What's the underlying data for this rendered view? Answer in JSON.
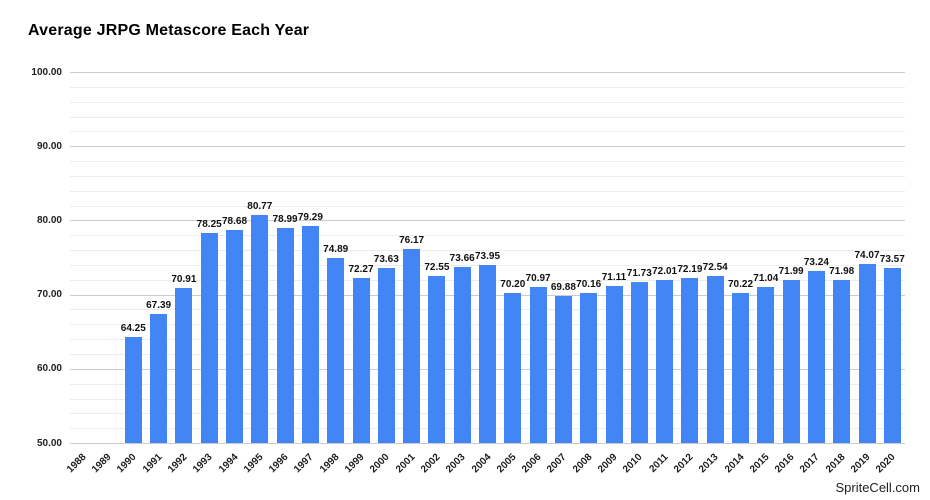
{
  "watermark": "SpriteCell.com",
  "chart_data": {
    "type": "bar",
    "title": "Average JRPG Metascore Each Year",
    "xlabel": "",
    "ylabel": "",
    "categories": [
      "1988",
      "1989",
      "1990",
      "1991",
      "1992",
      "1993",
      "1994",
      "1995",
      "1996",
      "1997",
      "1998",
      "1999",
      "2000",
      "2001",
      "2002",
      "2003",
      "2004",
      "2005",
      "2006",
      "2007",
      "2008",
      "2009",
      "2010",
      "2011",
      "2012",
      "2013",
      "2014",
      "2015",
      "2016",
      "2017",
      "2018",
      "2019",
      "2020"
    ],
    "values": [
      null,
      null,
      64.25,
      67.39,
      70.91,
      78.25,
      78.68,
      80.77,
      78.99,
      79.29,
      74.89,
      72.27,
      73.63,
      76.17,
      72.55,
      73.66,
      73.95,
      70.2,
      70.97,
      69.88,
      70.16,
      71.11,
      71.73,
      72.01,
      72.19,
      72.54,
      70.22,
      71.04,
      71.99,
      73.24,
      71.98,
      74.07,
      73.57
    ],
    "ylim": [
      50,
      100
    ],
    "y_major_tick_step": 10,
    "y_minor_tick_step": 2,
    "y_tick_labels": [
      "50.00",
      "60.00",
      "70.00",
      "80.00",
      "90.00",
      "100.00"
    ],
    "grid": "on",
    "legend_position": "none",
    "data_labels": "above-bars",
    "bar_color": "#4285f4",
    "major_grid_color": "#cccccc",
    "minor_grid_color": "#ececec",
    "label_color": "#111111"
  }
}
